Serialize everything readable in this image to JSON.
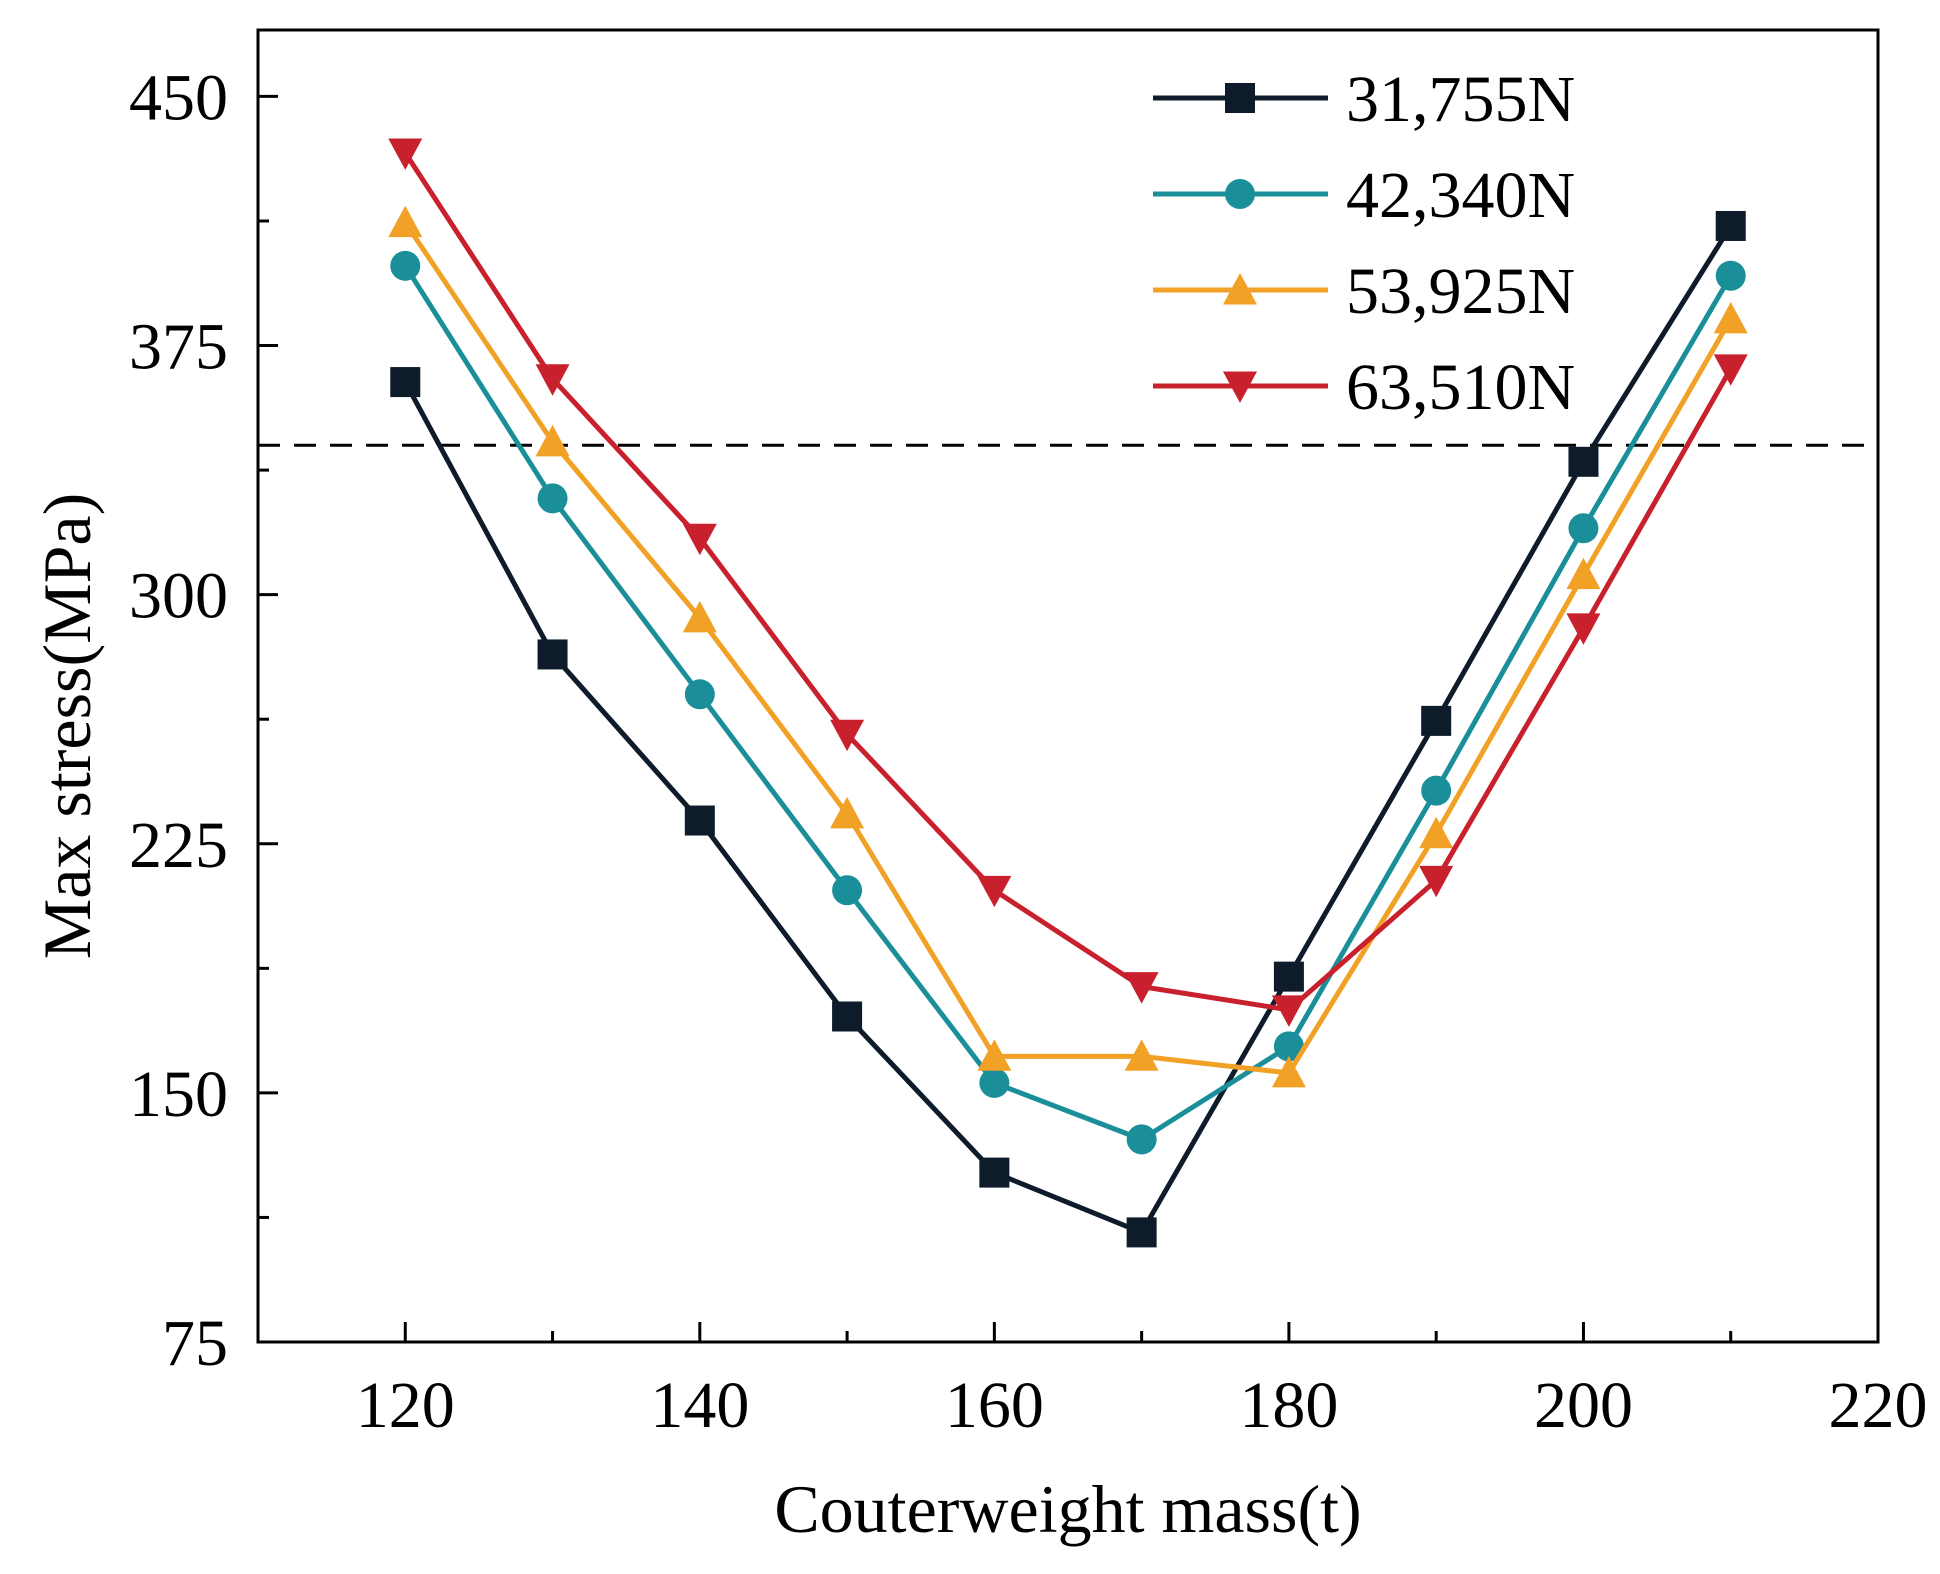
{
  "chart_data": {
    "type": "line",
    "title": "",
    "xlabel": "Couterweight mass(t)",
    "ylabel": "Max stress(MPa)",
    "xlim": [
      110,
      220
    ],
    "ylim": [
      75,
      470
    ],
    "x_ticks": [
      120,
      140,
      160,
      180,
      200,
      220
    ],
    "x_tick_labels": [
      "120",
      "140",
      "160",
      "180",
      "200",
      "220"
    ],
    "y_ticks": [
      75,
      150,
      225,
      300,
      375,
      450
    ],
    "y_tick_labels": [
      "75",
      "150",
      "225",
      "300",
      "375",
      "450"
    ],
    "y_minor_ticks": [
      112.5,
      187.5,
      262.5,
      337.5,
      412.5
    ],
    "x_minor_ticks": [
      130,
      150,
      170,
      190,
      210
    ],
    "reference_line": {
      "y": 345,
      "style": "dashed"
    },
    "legend_position": "top-right",
    "x": [
      120,
      130,
      140,
      150,
      160,
      170,
      180,
      190,
      200,
      210
    ],
    "series": [
      {
        "name": "31,755N",
        "color": "#0d1b2a",
        "marker": "square",
        "values": [
          364,
          282,
          232,
          173,
          126,
          108,
          185,
          262,
          340,
          411
        ]
      },
      {
        "name": "42,340N",
        "color": "#1a8f9a",
        "marker": "circle",
        "values": [
          399,
          329,
          270,
          211,
          153,
          136,
          164,
          241,
          320,
          396
        ]
      },
      {
        "name": "53,925N",
        "color": "#f2a127",
        "marker": "triangle-up",
        "values": [
          412,
          346,
          293,
          234,
          161,
          161,
          156,
          228,
          306,
          383
        ]
      },
      {
        "name": "63,510N",
        "color": "#c8202d",
        "marker": "triangle-down",
        "values": [
          433,
          365,
          317,
          258,
          211,
          182,
          175,
          214,
          290,
          368
        ]
      }
    ]
  }
}
